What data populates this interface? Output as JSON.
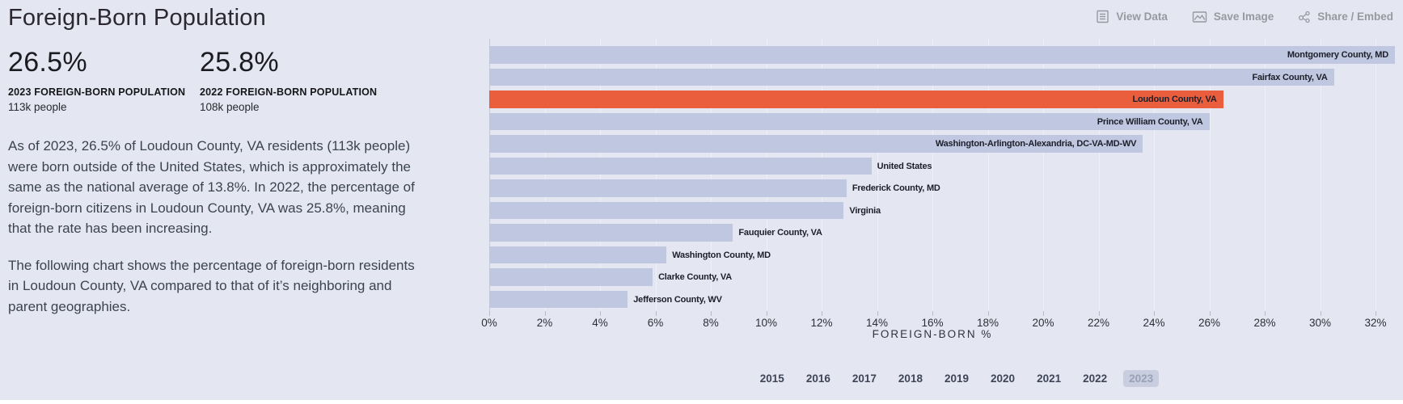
{
  "page": {
    "title": "Foreign-Born Population"
  },
  "toolbar": {
    "view_data_label": "View Data",
    "save_image_label": "Save Image",
    "share_embed_label": "Share / Embed",
    "icon_color": "#97999f"
  },
  "stats": [
    {
      "value": "26.5%",
      "label": "2023 FOREIGN-BORN POPULATION",
      "sub": "113k people"
    },
    {
      "value": "25.8%",
      "label": "2022 FOREIGN-BORN POPULATION",
      "sub": "108k people"
    }
  ],
  "narrative": {
    "p1": "As of 2023, 26.5% of Loudoun County, VA residents (113k people) were born outside of the United States, which is approximately the same as the national average of 13.8%. In 2022, the percentage of foreign-born citizens in Loudoun County, VA was 25.8%, meaning that the rate has been increasing.",
    "p2": "The following chart shows the percentage of foreign-born residents in Loudoun County, VA compared to that of it’s neighboring and parent geographies."
  },
  "chart_data": {
    "type": "bar",
    "orientation": "horizontal",
    "title": "",
    "xlabel": "FOREIGN-BORN %",
    "ylabel": "",
    "xlim": [
      0,
      32
    ],
    "x_tick_labels": [
      "0%",
      "2%",
      "4%",
      "6%",
      "8%",
      "10%",
      "12%",
      "14%",
      "16%",
      "18%",
      "20%",
      "22%",
      "24%",
      "26%",
      "28%",
      "30%",
      "32%"
    ],
    "grid": true,
    "categories": [
      "Montgomery County, MD",
      "Fairfax County, VA",
      "Loudoun County, VA",
      "Prince William County, VA",
      "Washington-Arlington-Alexandria, DC-VA-MD-WV",
      "United States",
      "Frederick County, MD",
      "Virginia",
      "Fauquier County, VA",
      "Washington County, MD",
      "Clarke County, VA",
      "Jefferson County, WV"
    ],
    "values": [
      32.7,
      30.5,
      26.5,
      26.0,
      23.6,
      13.8,
      12.9,
      12.8,
      8.8,
      6.4,
      5.9,
      5.0
    ],
    "label_inside": [
      true,
      true,
      true,
      true,
      true,
      false,
      false,
      false,
      false,
      false,
      false,
      false
    ],
    "highlight_category": "Loudoun County, VA",
    "bar_color": "#c0c7e0",
    "highlight_color": "#ea5d3d",
    "label_color": "#1c1f29"
  },
  "timeline": {
    "years": [
      "2015",
      "2016",
      "2017",
      "2018",
      "2019",
      "2020",
      "2021",
      "2022",
      "2023"
    ],
    "selected": "2023"
  }
}
